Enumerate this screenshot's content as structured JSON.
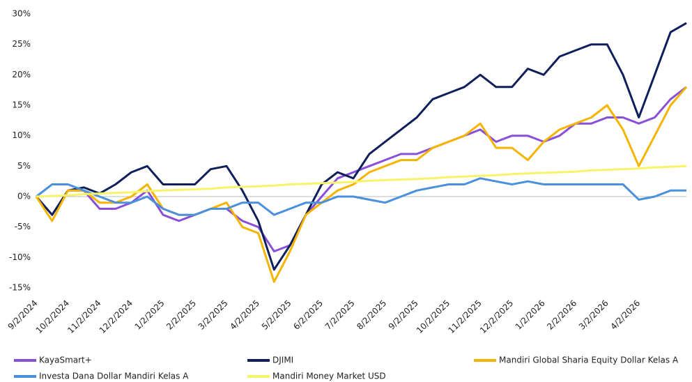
{
  "chart_data": {
    "type": "line",
    "categories": [
      "9/2/2024",
      null,
      "10/2/2024",
      null,
      "11/2/2024",
      null,
      "12/2/2024",
      null,
      "1/2/2025",
      null,
      "2/2/2025",
      null,
      "3/2/2025",
      null,
      "4/2/2025",
      null,
      "5/2/2025",
      null,
      "6/2/2025",
      null,
      "7/2/2025",
      null,
      "8/2/2025",
      null,
      "9/2/2025",
      null,
      "10/2/2025",
      null,
      "11/2/2025",
      null,
      "12/2/2025",
      null,
      "1/2/2026",
      null,
      "2/2/2026",
      null,
      "3/2/2026",
      null,
      "4/2/2026",
      null,
      null,
      null
    ],
    "series": [
      {
        "name": "KayaSmart+",
        "color": "#8a4fd8",
        "values": [
          0,
          -3,
          1,
          1,
          -2,
          -2,
          -1,
          1,
          -3,
          -4,
          -3,
          -2,
          -2,
          -4,
          -5,
          -9,
          -8,
          -3,
          0,
          3,
          4,
          5,
          6,
          7,
          7,
          8,
          9,
          10,
          11,
          9,
          10,
          10,
          9,
          10,
          12,
          12,
          13,
          13,
          12,
          13,
          16,
          18
        ]
      },
      {
        "name": "DJIMI",
        "color": "#0f1f5c",
        "values": [
          0,
          -3,
          1,
          1.5,
          0.5,
          2,
          4,
          5,
          2,
          2,
          2,
          4.5,
          5,
          1,
          -4,
          -12,
          -8,
          -3,
          2,
          4,
          3,
          7,
          9,
          11,
          13,
          16,
          17,
          18,
          20,
          18,
          18,
          21,
          20,
          23,
          24,
          25,
          25,
          20,
          13,
          20,
          27,
          28.5
        ]
      },
      {
        "name": "Mandiri Global Sharia Equity Dollar Kelas A",
        "color": "#f5b400",
        "values": [
          0,
          -4,
          1,
          1,
          -1,
          -1,
          0,
          2,
          -2,
          -3,
          -3,
          -2,
          -1,
          -5,
          -6,
          -14,
          -9,
          -3,
          -1,
          1,
          2,
          4,
          5,
          6,
          6,
          8,
          9,
          10,
          12,
          8,
          8,
          6,
          9,
          11,
          12,
          13,
          15,
          11,
          5,
          10,
          15,
          18
        ]
      },
      {
        "name": "Investa Dana Dollar Mandiri Kelas A",
        "color": "#4a90dc",
        "values": [
          0,
          2,
          2,
          1,
          0,
          -1,
          -1,
          0,
          -2,
          -3,
          -3,
          -2,
          -2,
          -1,
          -1,
          -3,
          -2,
          -1,
          -1,
          0,
          0,
          -0.5,
          -1,
          0,
          1,
          1.5,
          2,
          2,
          3,
          2.5,
          2,
          2.5,
          2,
          2,
          2,
          2,
          2,
          2,
          -0.5,
          0,
          1,
          1
        ]
      },
      {
        "name": "Mandiri Money Market USD",
        "color": "#f7f46a",
        "values": [
          0,
          0.1,
          0.2,
          0.4,
          0.5,
          0.6,
          0.7,
          0.9,
          1,
          1.1,
          1.2,
          1.3,
          1.5,
          1.6,
          1.7,
          1.8,
          2,
          2.1,
          2.2,
          2.3,
          2.4,
          2.6,
          2.7,
          2.8,
          2.9,
          3,
          3.2,
          3.3,
          3.4,
          3.5,
          3.7,
          3.8,
          3.9,
          4,
          4.1,
          4.3,
          4.4,
          4.5,
          4.6,
          4.8,
          4.9,
          5
        ]
      }
    ],
    "ylim": [
      -15,
      30
    ],
    "yticks": [
      {
        "value": -15,
        "label": "-15%"
      },
      {
        "value": -10,
        "label": "-10%"
      },
      {
        "value": -5,
        "label": "-5%"
      },
      {
        "value": 0,
        "label": "0%"
      },
      {
        "value": 5,
        "label": "5%"
      },
      {
        "value": 10,
        "label": "10%"
      },
      {
        "value": 15,
        "label": "15%"
      },
      {
        "value": 20,
        "label": "20%"
      },
      {
        "value": 25,
        "label": "25%"
      },
      {
        "value": 30,
        "label": "30%"
      }
    ],
    "grid": false,
    "legend": "bottom"
  }
}
